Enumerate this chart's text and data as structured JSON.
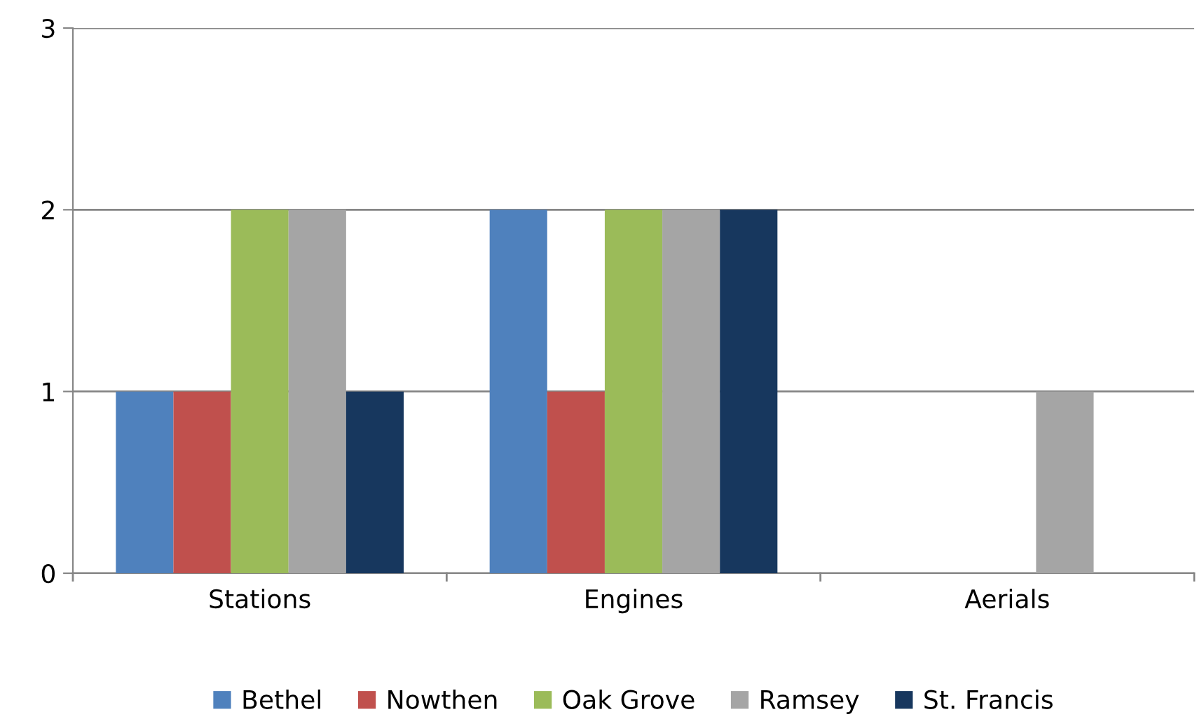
{
  "chart_data": {
    "type": "bar",
    "categories": [
      "Stations",
      "Engines",
      "Aerials"
    ],
    "series": [
      {
        "name": "Bethel",
        "color": "#4f81bd",
        "values": [
          1,
          2,
          0
        ]
      },
      {
        "name": "Nowthen",
        "color": "#c0504d",
        "values": [
          1,
          1,
          0
        ]
      },
      {
        "name": "Oak Grove",
        "color": "#9bbb59",
        "values": [
          2,
          2,
          0
        ]
      },
      {
        "name": "Ramsey",
        "color": "#a5a5a5",
        "values": [
          2,
          2,
          1
        ]
      },
      {
        "name": "St. Francis",
        "color": "#17375e",
        "values": [
          1,
          2,
          0
        ]
      }
    ],
    "ylim": [
      0,
      3
    ],
    "yticks": [
      0,
      1,
      2,
      3
    ],
    "grid": "y",
    "legend": "bottom"
  }
}
